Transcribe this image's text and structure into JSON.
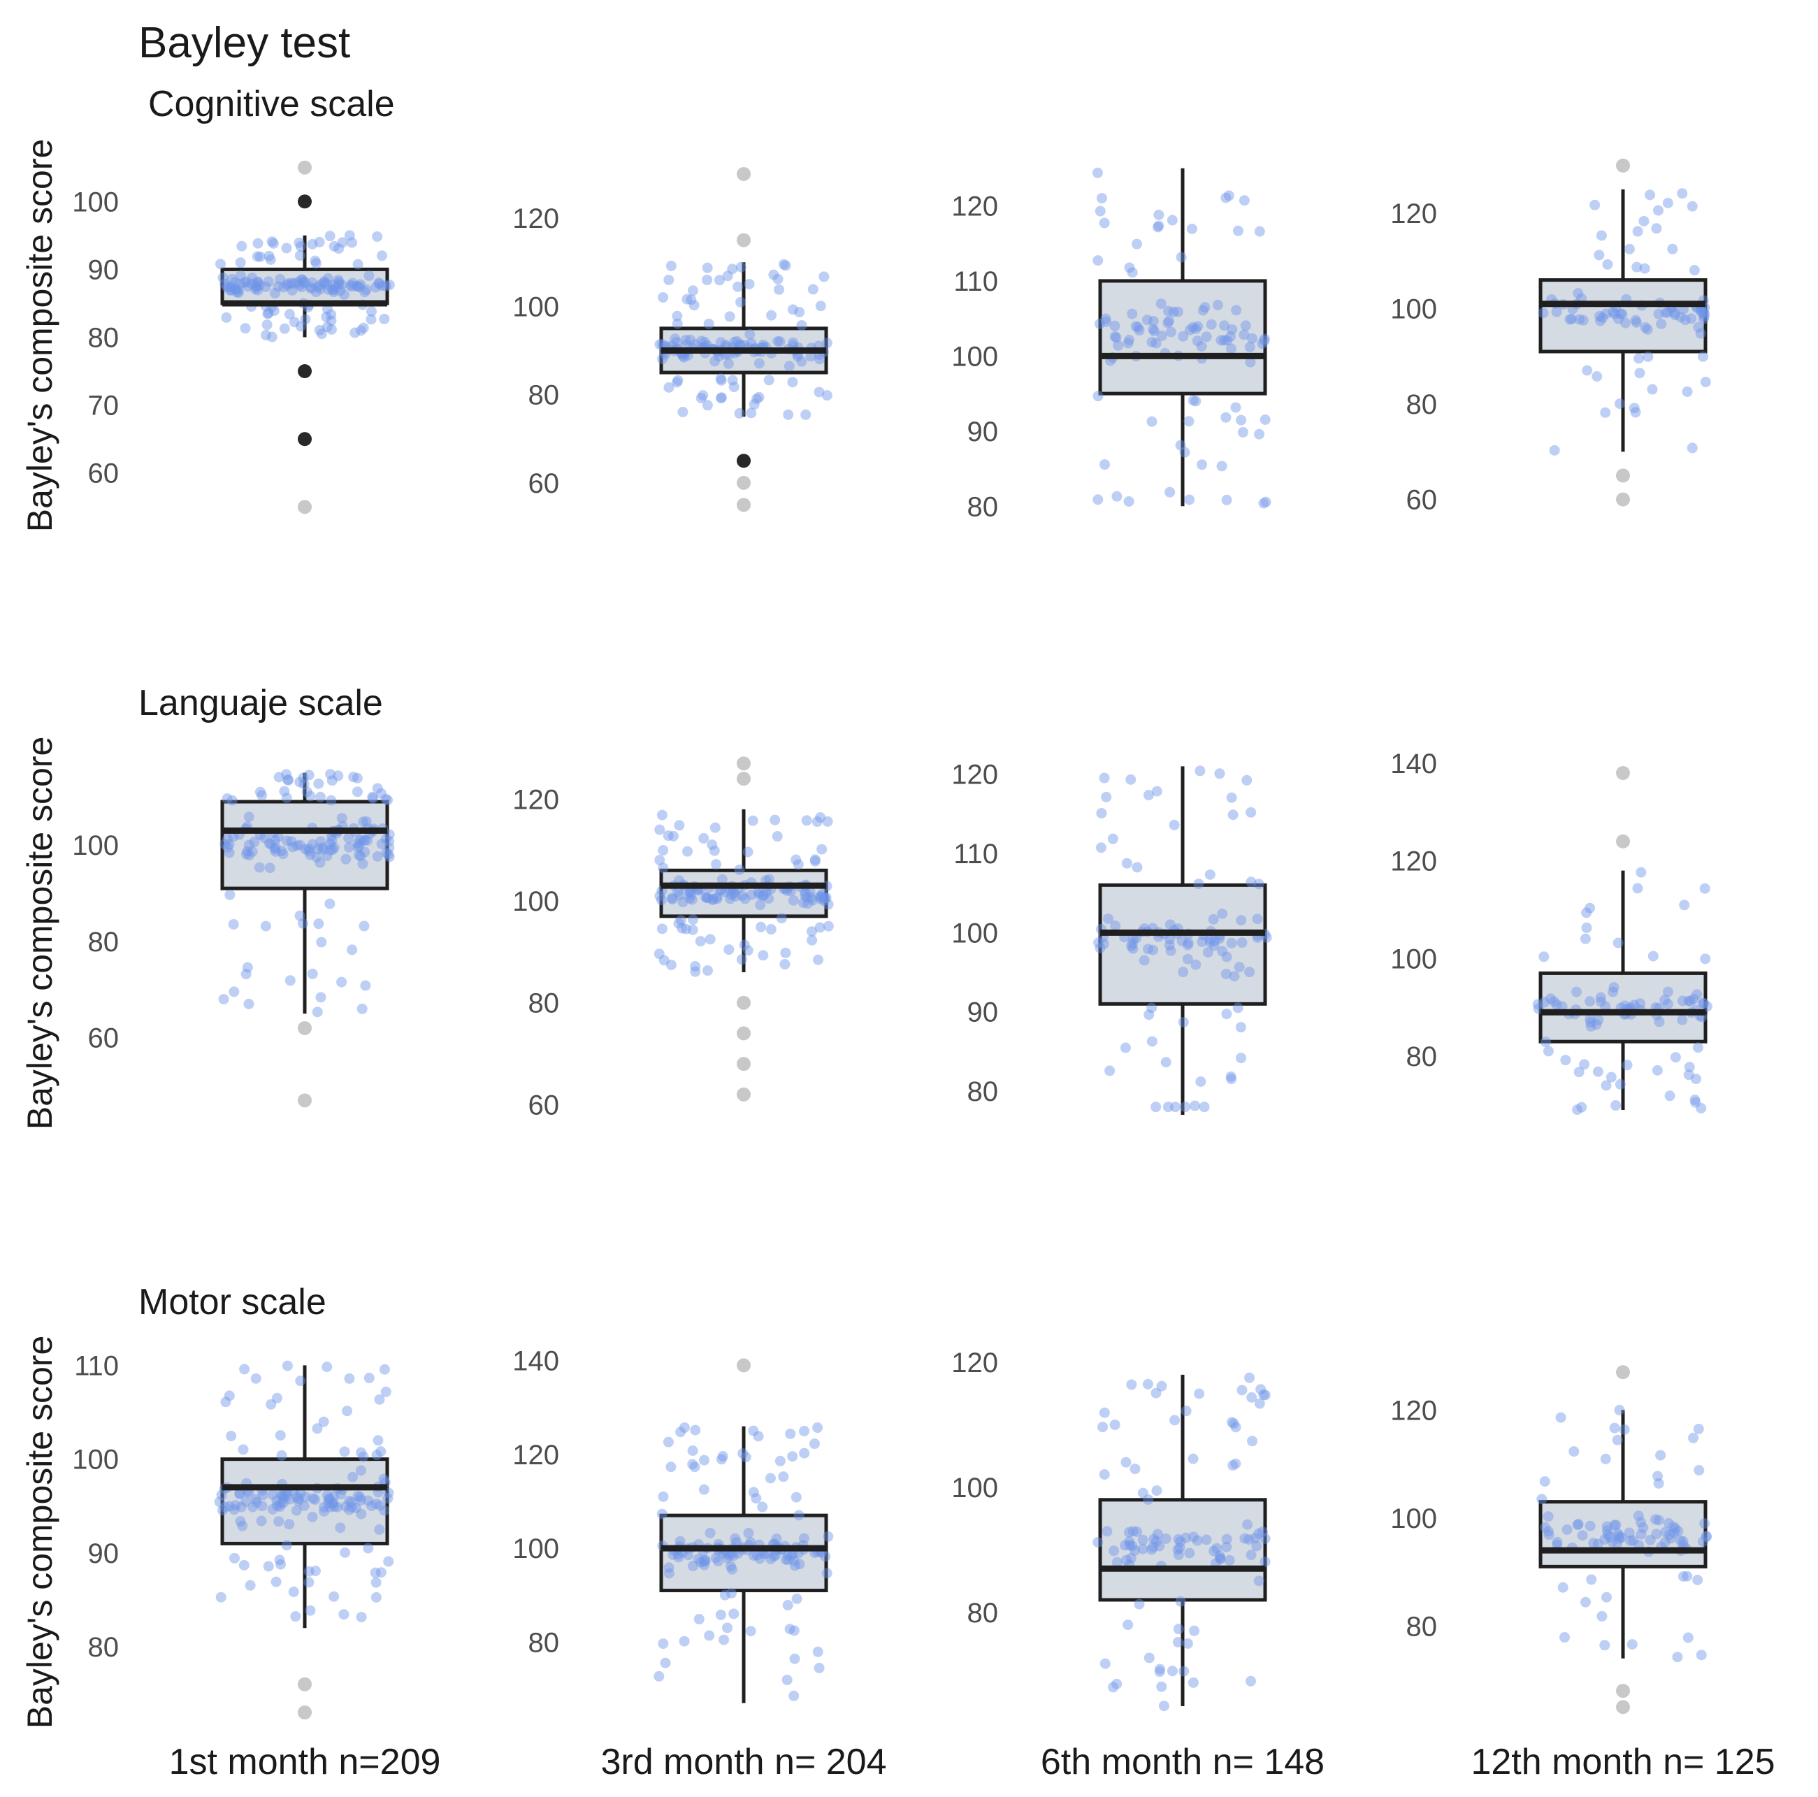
{
  "colors": {
    "box_fill": "#d5dbe3",
    "box_stroke": "#1f1f1f",
    "point": "#6f95e8",
    "outlier_light": "#9a9a9a",
    "outlier_dark": "#111111"
  },
  "chart_data": {
    "type": "boxplot",
    "title": "Bayley test",
    "ylabel": "Bayley's composite score",
    "categories": [
      "1st month n=209",
      "3rd month n= 204",
      "6th month n= 148",
      "12th month n= 125"
    ],
    "rows": [
      {
        "name": "Cognitive scale",
        "panels": [
          {
            "category": "1st month n=209",
            "ylim": [
              54,
              106
            ],
            "ticks": [
              60,
              70,
              80,
              90,
              100
            ],
            "box": {
              "q1": 85,
              "median": 85,
              "q3": 90,
              "whisker_low": 80,
              "whisker_high": 95
            },
            "outliers": [
              55,
              65,
              75,
              100,
              105
            ],
            "dark_outliers": [
              65,
              75,
              100
            ],
            "n": 209
          },
          {
            "category": "3rd month n= 204",
            "ylim": [
              53,
              133
            ],
            "ticks": [
              60,
              80,
              100,
              120
            ],
            "box": {
              "q1": 85,
              "median": 90,
              "q3": 95,
              "whisker_low": 75,
              "whisker_high": 110
            },
            "outliers": [
              55,
              60,
              65,
              115,
              130
            ],
            "dark_outliers": [
              65
            ],
            "n": 204
          },
          {
            "category": "6th month n= 148",
            "ylim": [
              79,
              126
            ],
            "ticks": [
              80,
              90,
              100,
              110,
              120
            ],
            "box": {
              "q1": 95,
              "median": 100,
              "q3": 110,
              "whisker_low": 80,
              "whisker_high": 125
            },
            "outliers": [],
            "dark_outliers": [],
            "n": 148
          },
          {
            "category": "12th month n= 125",
            "ylim": [
              57,
              131
            ],
            "ticks": [
              60,
              80,
              100,
              120
            ],
            "box": {
              "q1": 91,
              "median": 101,
              "q3": 106,
              "whisker_low": 70,
              "whisker_high": 125
            },
            "outliers": [
              60,
              65,
              130
            ],
            "dark_outliers": [],
            "n": 125
          }
        ]
      },
      {
        "name": "Languaje scale",
        "panels": [
          {
            "category": "1st month n=209",
            "ylim": [
              44,
              118
            ],
            "ticks": [
              60,
              80,
              100
            ],
            "box": {
              "q1": 91,
              "median": 103,
              "q3": 109,
              "whisker_low": 65,
              "whisker_high": 115
            },
            "outliers": [
              47,
              62
            ],
            "dark_outliers": [],
            "n": 209
          },
          {
            "category": "3rd month n= 204",
            "ylim": [
              58,
              128
            ],
            "ticks": [
              60,
              80,
              100,
              120
            ],
            "box": {
              "q1": 97,
              "median": 103,
              "q3": 106,
              "whisker_low": 86,
              "whisker_high": 118
            },
            "outliers": [
              62,
              68,
              74,
              80,
              124,
              127
            ],
            "dark_outliers": [],
            "n": 204
          },
          {
            "category": "6th month n= 148",
            "ylim": [
              77,
              122
            ],
            "ticks": [
              80,
              90,
              100,
              110,
              120
            ],
            "box": {
              "q1": 91,
              "median": 100,
              "q3": 106,
              "whisker_low": 77,
              "whisker_high": 121
            },
            "outliers": [],
            "dark_outliers": [],
            "n": 148
          },
          {
            "category": "12th month n= 125",
            "ylim": [
              68,
              141
            ],
            "ticks": [
              80,
              100,
              120,
              140
            ],
            "box": {
              "q1": 83,
              "median": 89,
              "q3": 97,
              "whisker_low": 69,
              "whisker_high": 118
            },
            "outliers": [
              124,
              138
            ],
            "dark_outliers": [],
            "n": 125
          }
        ]
      },
      {
        "name": "Motor scale",
        "panels": [
          {
            "category": "1st month n=209",
            "ylim": [
              73,
              111
            ],
            "ticks": [
              80,
              90,
              100,
              110
            ],
            "box": {
              "q1": 91,
              "median": 97,
              "q3": 100,
              "whisker_low": 82,
              "whisker_high": 110
            },
            "outliers": [
              73,
              76
            ],
            "dark_outliers": [],
            "n": 209
          },
          {
            "category": "3rd month n= 204",
            "ylim": [
              65,
              141
            ],
            "ticks": [
              80,
              100,
              120,
              140
            ],
            "box": {
              "q1": 91,
              "median": 100,
              "q3": 107,
              "whisker_low": 67,
              "whisker_high": 126
            },
            "outliers": [
              139
            ],
            "dark_outliers": [],
            "n": 204
          },
          {
            "category": "6th month n= 148",
            "ylim": [
              64,
              121
            ],
            "ticks": [
              80,
              100,
              120
            ],
            "box": {
              "q1": 82,
              "median": 87,
              "q3": 98,
              "whisker_low": 65,
              "whisker_high": 118
            },
            "outliers": [],
            "dark_outliers": [],
            "n": 148
          },
          {
            "category": "12th month n= 125",
            "ylim": [
              64,
              130
            ],
            "ticks": [
              80,
              100,
              120
            ],
            "box": {
              "q1": 91,
              "median": 94,
              "q3": 103,
              "whisker_low": 74,
              "whisker_high": 120
            },
            "outliers": [
              65,
              68,
              127
            ],
            "dark_outliers": [],
            "n": 125
          }
        ]
      }
    ]
  }
}
